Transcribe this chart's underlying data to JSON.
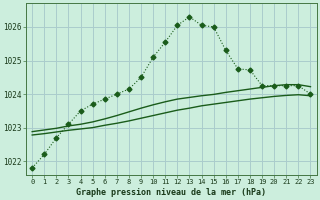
{
  "title": "Graphe pression niveau de la mer (hPa)",
  "bg_color": "#cceedd",
  "grid_color": "#aacccc",
  "line_color": "#1a5c1a",
  "x_labels": [
    "0",
    "1",
    "2",
    "3",
    "4",
    "5",
    "6",
    "7",
    "8",
    "9",
    "10",
    "11",
    "12",
    "13",
    "14",
    "15",
    "16",
    "17",
    "18",
    "19",
    "20",
    "21",
    "22",
    "23"
  ],
  "y_ticks": [
    1022,
    1023,
    1024,
    1025,
    1026
  ],
  "ylim": [
    1021.6,
    1026.7
  ],
  "main_series": [
    1021.8,
    1022.2,
    1022.7,
    1023.1,
    1023.5,
    1023.7,
    1023.85,
    1024.0,
    1024.15,
    1024.5,
    1025.1,
    1025.55,
    1026.05,
    1026.3,
    1026.05,
    1026.0,
    1025.3,
    1024.75,
    1024.72,
    1024.25,
    1024.25,
    1024.25,
    1024.25,
    1024.0
  ],
  "smooth_low": [
    1022.78,
    1022.82,
    1022.87,
    1022.92,
    1022.96,
    1023.0,
    1023.07,
    1023.13,
    1023.2,
    1023.28,
    1023.36,
    1023.44,
    1023.52,
    1023.58,
    1023.65,
    1023.7,
    1023.75,
    1023.8,
    1023.85,
    1023.89,
    1023.93,
    1023.96,
    1023.98,
    1023.95
  ],
  "smooth_high": [
    1022.88,
    1022.93,
    1022.98,
    1023.05,
    1023.1,
    1023.17,
    1023.26,
    1023.36,
    1023.47,
    1023.58,
    1023.68,
    1023.77,
    1023.85,
    1023.9,
    1023.95,
    1023.99,
    1024.05,
    1024.1,
    1024.15,
    1024.2,
    1024.25,
    1024.28,
    1024.28,
    1024.22
  ]
}
